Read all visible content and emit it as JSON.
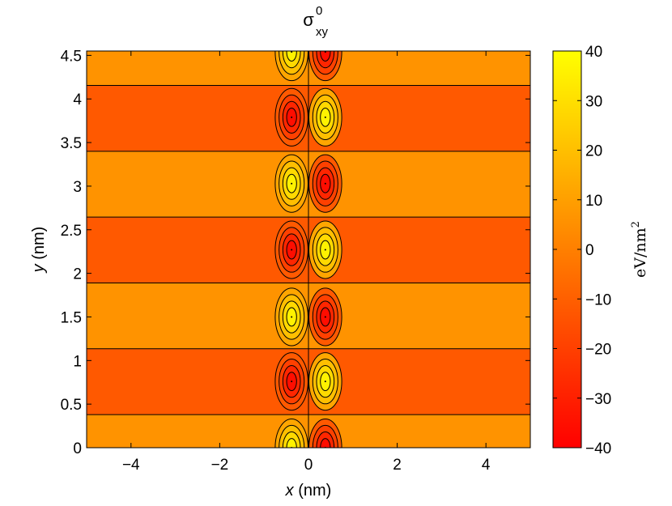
{
  "chart_data": {
    "type": "heatmap",
    "title": {
      "symbol": "σ",
      "superscript": "0",
      "subscript": "xy"
    },
    "xlabel": {
      "var": "x",
      "unit": " (nm)"
    },
    "ylabel": {
      "var": "y",
      "unit": " (nm)"
    },
    "colorbar_label": {
      "base": "eV/nm",
      "exponent": "2"
    },
    "xlim": [
      -5,
      5
    ],
    "ylim": [
      0,
      4.55
    ],
    "clim": [
      -40,
      40
    ],
    "xticks": [
      -4,
      -2,
      0,
      2,
      4
    ],
    "xtick_labels": [
      "−4",
      "−2",
      "0",
      "2",
      "4"
    ],
    "yticks": [
      0,
      0.5,
      1,
      1.5,
      2,
      2.5,
      3,
      3.5,
      4,
      4.5
    ],
    "ytick_labels": [
      "0",
      "0.5",
      "1",
      "1.5",
      "2",
      "2.5",
      "3",
      "3.5",
      "4",
      "4.5"
    ],
    "cticks": [
      40,
      30,
      20,
      10,
      0,
      -10,
      -20,
      -30,
      -40
    ],
    "ctick_labels": [
      "40",
      "30",
      "20",
      "10",
      "0",
      "−10",
      "−20",
      "−30",
      "−40"
    ],
    "colormap": "autumn",
    "colormap_colors": {
      "low": "#ff0000",
      "high": "#ffff00"
    },
    "contour_color": "#000000",
    "band_boundaries_y": [
      0.38,
      1.135,
      1.89,
      2.645,
      3.4,
      4.155
    ],
    "bands": [
      {
        "y_from": 0,
        "y_to": 0.38,
        "background": 6,
        "lobes": [
          {
            "x": -0.38,
            "y": 0.0,
            "peak": 40
          },
          {
            "x": 0.38,
            "y": 0.0,
            "peak": -40
          }
        ]
      },
      {
        "y_from": 0.38,
        "y_to": 1.135,
        "background": -12,
        "lobes": [
          {
            "x": -0.38,
            "y": 0.76,
            "peak": -40
          },
          {
            "x": 0.38,
            "y": 0.76,
            "peak": 40
          }
        ]
      },
      {
        "y_from": 1.135,
        "y_to": 1.89,
        "background": 6,
        "lobes": [
          {
            "x": -0.38,
            "y": 1.5,
            "peak": 40
          },
          {
            "x": 0.38,
            "y": 1.5,
            "peak": -40
          }
        ]
      },
      {
        "y_from": 1.89,
        "y_to": 2.645,
        "background": -12,
        "lobes": [
          {
            "x": -0.38,
            "y": 2.27,
            "peak": -40
          },
          {
            "x": 0.38,
            "y": 2.27,
            "peak": 40
          }
        ]
      },
      {
        "y_from": 2.645,
        "y_to": 3.4,
        "background": 6,
        "lobes": [
          {
            "x": -0.38,
            "y": 3.03,
            "peak": 40
          },
          {
            "x": 0.38,
            "y": 3.03,
            "peak": -40
          }
        ]
      },
      {
        "y_from": 3.4,
        "y_to": 4.155,
        "background": -12,
        "lobes": [
          {
            "x": -0.38,
            "y": 3.79,
            "peak": -40
          },
          {
            "x": 0.38,
            "y": 3.79,
            "peak": 40
          }
        ]
      },
      {
        "y_from": 4.155,
        "y_to": 4.55,
        "background": 6,
        "lobes": [
          {
            "x": -0.38,
            "y": 4.54,
            "peak": 40
          },
          {
            "x": 0.38,
            "y": 4.54,
            "peak": -40
          }
        ]
      }
    ],
    "contour_levels": [
      -36,
      -28,
      -20,
      -12,
      12,
      20,
      28,
      36
    ],
    "lobe_half_width_x": 0.37,
    "lobe_half_height_y": 0.33,
    "center_line_x": 0.0
  }
}
